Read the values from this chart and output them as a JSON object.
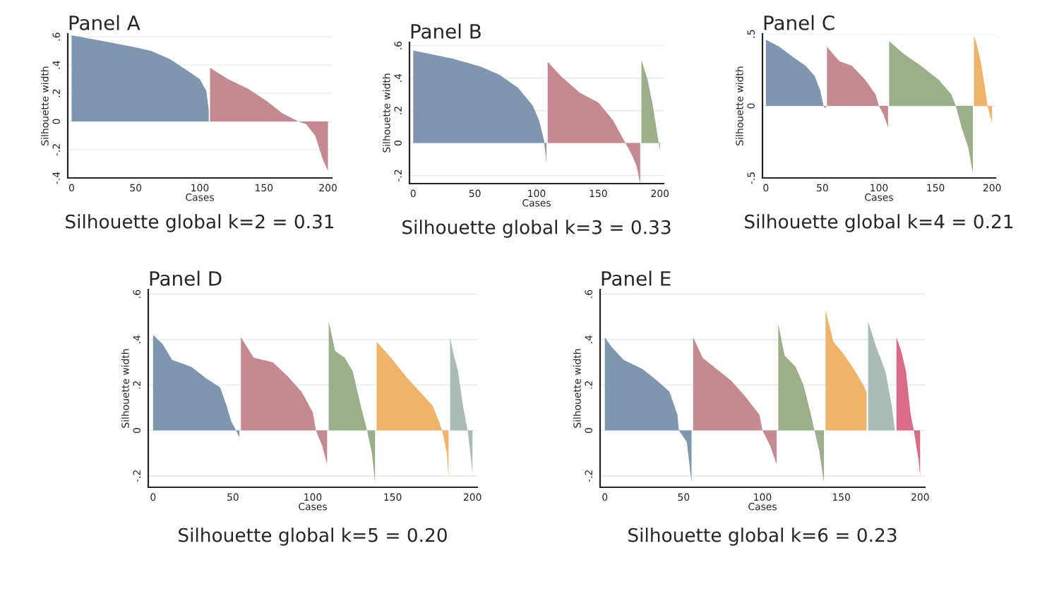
{
  "chart_data": [
    {
      "type": "area",
      "title": "Panel A",
      "xlabel": "Cases",
      "ylabel": "Silhouette width",
      "annotations": [
        "Silhouette global k=2 = 0.31"
      ],
      "xlim": [
        -3,
        203
      ],
      "ylim": [
        -0.4,
        0.62
      ],
      "xticks": [
        0,
        50,
        100,
        150,
        200
      ],
      "yticks": [
        {
          "value": -0.4,
          "label": "-.4"
        },
        {
          "value": -0.2,
          "label": "-.2"
        },
        0,
        {
          "value": 0.2,
          "label": ".2"
        },
        {
          "value": 0.4,
          "label": ".4"
        },
        {
          "value": 0.6,
          "label": ".6"
        }
      ],
      "grid": "y",
      "series": [
        {
          "color": "#7f96ae",
          "x": [
            0,
            24,
            47,
            62,
            77,
            92,
            100,
            103,
            105,
            107
          ],
          "values": [
            0.61,
            0.57,
            0.53,
            0.5,
            0.44,
            0.35,
            0.3,
            0.25,
            0.22,
            0.08
          ]
        },
        {
          "color": "#c48a8f",
          "x": [
            108,
            122,
            138,
            153,
            164,
            177,
            183,
            190,
            196,
            200
          ],
          "values": [
            0.38,
            0.3,
            0.23,
            0.14,
            0.06,
            0,
            -0.02,
            -0.1,
            -0.27,
            -0.35
          ]
        }
      ]
    },
    {
      "type": "area",
      "title": "Panel B",
      "xlabel": "Cases",
      "ylabel": "Silhouette width",
      "annotations": [
        "Silhouette global k=3 = 0.33"
      ],
      "xlim": [
        -3,
        203
      ],
      "ylim": [
        -0.25,
        0.62
      ],
      "xticks": [
        0,
        50,
        100,
        150,
        200
      ],
      "yticks": [
        {
          "value": -0.2,
          "label": "-.2"
        },
        0,
        {
          "value": 0.2,
          "label": ".2"
        },
        {
          "value": 0.4,
          "label": ".4"
        },
        {
          "value": 0.6,
          "label": ".6"
        }
      ],
      "grid": "y",
      "series": [
        {
          "color": "#7f96ae",
          "x": [
            0,
            32,
            55,
            70,
            85,
            97,
            102,
            106,
            108
          ],
          "values": [
            0.57,
            0.52,
            0.47,
            0.42,
            0.34,
            0.23,
            0.14,
            0.02,
            -0.12
          ]
        },
        {
          "color": "#c48a8f",
          "x": [
            109,
            120,
            135,
            150,
            162,
            172,
            177,
            181,
            184
          ],
          "values": [
            0.5,
            0.41,
            0.31,
            0.25,
            0.14,
            0,
            -0.07,
            -0.14,
            -0.25
          ]
        },
        {
          "color": "#9bb08a",
          "x": [
            185,
            190,
            194,
            198,
            200
          ],
          "values": [
            0.51,
            0.39,
            0.24,
            0.05,
            -0.05
          ]
        }
      ]
    },
    {
      "type": "area",
      "title": "Panel C",
      "xlabel": "Cases",
      "ylabel": "Silhouette width",
      "annotations": [
        "Silhouette global k=4 = 0.21"
      ],
      "xlim": [
        -3,
        203
      ],
      "ylim": [
        -0.5,
        0.5
      ],
      "xticks": [
        0,
        50,
        100,
        150,
        200
      ],
      "yticks": [
        {
          "value": -0.5,
          "label": "-.5"
        },
        0,
        {
          "value": 0.5,
          "label": ".5"
        }
      ],
      "grid": "y",
      "series": [
        {
          "color": "#7f96ae",
          "x": [
            0,
            12,
            24,
            35,
            43,
            48,
            51,
            53
          ],
          "values": [
            0.46,
            0.41,
            0.34,
            0.28,
            0.21,
            0.11,
            0,
            -0.02
          ]
        },
        {
          "color": "#c48a8f",
          "x": [
            54,
            65,
            76,
            88,
            97,
            100,
            104,
            108
          ],
          "values": [
            0.41,
            0.31,
            0.28,
            0.18,
            0.08,
            0,
            -0.06,
            -0.15
          ]
        },
        {
          "color": "#9bb08a",
          "x": [
            109,
            122,
            137,
            153,
            164,
            168,
            173,
            179,
            183
          ],
          "values": [
            0.45,
            0.36,
            0.28,
            0.18,
            0.08,
            0,
            -0.15,
            -0.29,
            -0.47
          ]
        },
        {
          "color": "#f0b36a",
          "x": [
            184,
            187,
            190,
            194,
            196,
            200
          ],
          "values": [
            0.49,
            0.41,
            0.31,
            0.11,
            0,
            -0.12
          ]
        }
      ]
    },
    {
      "type": "area",
      "title": "Panel D",
      "xlabel": "Cases",
      "ylabel": "Silhouette width",
      "annotations": [
        "Silhouette global k=5 = 0.20"
      ],
      "xlim": [
        -3,
        203
      ],
      "ylim": [
        -0.25,
        0.62
      ],
      "xticks": [
        0,
        50,
        100,
        150,
        200
      ],
      "yticks": [
        {
          "value": -0.2,
          "label": "-.2"
        },
        0,
        {
          "value": 0.2,
          "label": ".2"
        },
        {
          "value": 0.4,
          "label": ".4"
        },
        {
          "value": 0.6,
          "label": ".6"
        }
      ],
      "grid": "y",
      "series": [
        {
          "color": "#7f96ae",
          "x": [
            0,
            6,
            12,
            24,
            33,
            42,
            46,
            49,
            52,
            54
          ],
          "values": [
            0.42,
            0.38,
            0.31,
            0.28,
            0.23,
            0.19,
            0.11,
            0.04,
            0,
            -0.03
          ]
        },
        {
          "color": "#c48a8f",
          "x": [
            55,
            63,
            75,
            84,
            93,
            100,
            102,
            106,
            109
          ],
          "values": [
            0.41,
            0.32,
            0.3,
            0.24,
            0.17,
            0.08,
            0,
            -0.07,
            -0.15
          ]
        },
        {
          "color": "#9bb08a",
          "x": [
            110,
            114,
            120,
            125,
            130,
            134,
            137,
            139
          ],
          "values": [
            0.48,
            0.35,
            0.32,
            0.26,
            0.11,
            0,
            -0.1,
            -0.23
          ]
        },
        {
          "color": "#f0b36a",
          "x": [
            140,
            149,
            158,
            167,
            175,
            179,
            181,
            184,
            185
          ],
          "values": [
            0.39,
            0.32,
            0.24,
            0.17,
            0.11,
            0.04,
            0,
            -0.1,
            -0.21
          ]
        },
        {
          "color": "#a9bcb8",
          "x": [
            186,
            188,
            191,
            194,
            197,
            199,
            200
          ],
          "values": [
            0.41,
            0.34,
            0.26,
            0.11,
            0,
            -0.12,
            -0.19
          ]
        }
      ]
    },
    {
      "type": "area",
      "title": "Panel E",
      "xlabel": "Cases",
      "ylabel": "Silhouette width",
      "annotations": [
        "Silhouette global k=6 = 0.23"
      ],
      "xlim": [
        -3,
        203
      ],
      "ylim": [
        -0.25,
        0.62
      ],
      "xticks": [
        0,
        50,
        100,
        150,
        200
      ],
      "yticks": [
        {
          "value": -0.2,
          "label": "-.2"
        },
        0,
        {
          "value": 0.2,
          "label": ".2"
        },
        {
          "value": 0.4,
          "label": ".4"
        },
        {
          "value": 0.6,
          "label": ".6"
        }
      ],
      "grid": "y",
      "series": [
        {
          "color": "#7f96ae",
          "x": [
            0,
            4,
            12,
            24,
            33,
            41,
            46,
            47,
            52,
            55
          ],
          "values": [
            0.41,
            0.37,
            0.31,
            0.27,
            0.22,
            0.17,
            0.07,
            0,
            -0.05,
            -0.23
          ]
        },
        {
          "color": "#c48a8f",
          "x": [
            56,
            62,
            71,
            80,
            89,
            98,
            100,
            105,
            109
          ],
          "values": [
            0.41,
            0.32,
            0.27,
            0.22,
            0.15,
            0.07,
            0,
            -0.07,
            -0.15
          ]
        },
        {
          "color": "#9bb08a",
          "x": [
            110,
            114,
            121,
            126,
            130,
            133,
            136,
            139
          ],
          "values": [
            0.47,
            0.33,
            0.28,
            0.2,
            0.09,
            0,
            -0.09,
            -0.23
          ]
        },
        {
          "color": "#f0b36a",
          "x": [
            140,
            145,
            151,
            158,
            164,
            166
          ],
          "values": [
            0.53,
            0.39,
            0.34,
            0.27,
            0.2,
            0.17
          ]
        },
        {
          "color": "#a9bcb8",
          "x": [
            167,
            172,
            178,
            182,
            184
          ],
          "values": [
            0.48,
            0.37,
            0.26,
            0.11,
            0
          ]
        },
        {
          "color": "#d96b86",
          "x": [
            185,
            188,
            191,
            194,
            196,
            199,
            200
          ],
          "values": [
            0.41,
            0.35,
            0.26,
            0.07,
            0,
            -0.13,
            -0.2
          ]
        }
      ]
    }
  ]
}
